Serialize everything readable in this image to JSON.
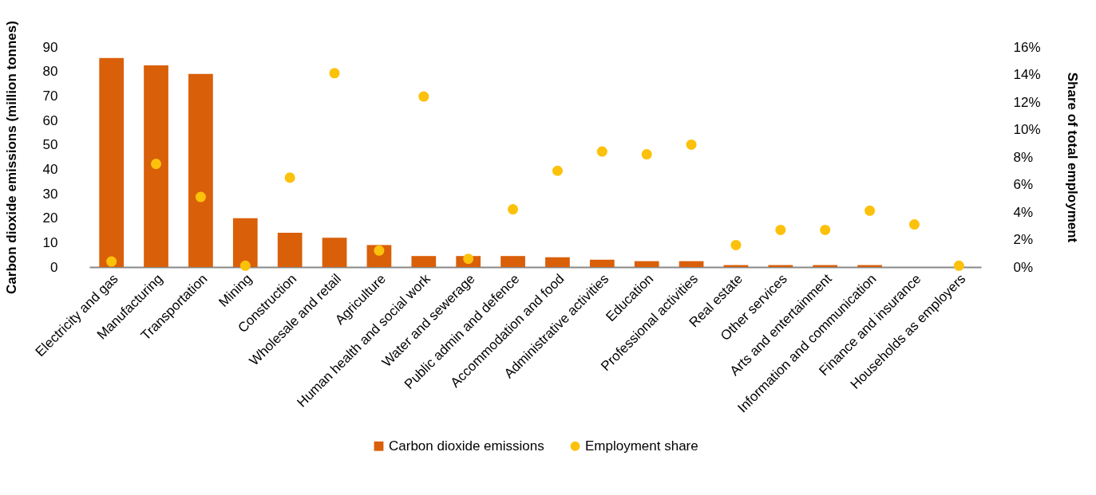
{
  "chart_data": {
    "type": "bar",
    "categories": [
      "Electricity and gas",
      "Manufacturing",
      "Transportation",
      "Mining",
      "Construction",
      "Wholesale and retail",
      "Agriculture",
      "Human health and social work",
      "Water and sewerage",
      "Public admin and defence",
      "Accommodation and food",
      "Administrative activities",
      "Education",
      "Professional activities",
      "Real estate",
      "Other services",
      "Arts and entertainment",
      "Information and communication",
      "Finance and insurance",
      "Households as employers"
    ],
    "series": [
      {
        "name": "Carbon dioxide emissions",
        "color": "#d95f09",
        "values": [
          85.5,
          82.5,
          79,
          20,
          14,
          12,
          9,
          4.5,
          4.5,
          4.5,
          4,
          3,
          2.4,
          2.4,
          0.8,
          0.8,
          0.8,
          0.8,
          0,
          0
        ]
      },
      {
        "name": "Employment share",
        "type": "scatter",
        "axis": "y2",
        "color": "#fcc10b",
        "values": [
          0.4,
          7.5,
          5.1,
          0.1,
          6.5,
          14.1,
          1.2,
          12.4,
          0.6,
          4.2,
          7,
          8.4,
          8.2,
          8.9,
          1.6,
          2.7,
          2.7,
          4.1,
          3.1,
          0.1
        ]
      }
    ],
    "ylabel": "Carbon dioxide emissions (million tonnes)",
    "y2label": "Share of total employment",
    "ylim": [
      0,
      90
    ],
    "yticks": [
      0,
      10,
      20,
      30,
      40,
      50,
      60,
      70,
      80,
      90
    ],
    "y2lim": [
      0,
      16
    ],
    "y2ticks": [
      {
        "value": 0,
        "label": "0%"
      },
      {
        "value": 2,
        "label": "2%"
      },
      {
        "value": 4,
        "label": "4%"
      },
      {
        "value": 6,
        "label": "6%"
      },
      {
        "value": 8,
        "label": "8%"
      },
      {
        "value": 10,
        "label": "10%"
      },
      {
        "value": 12,
        "label": "12%"
      },
      {
        "value": 14,
        "label": "14%"
      },
      {
        "value": 16,
        "label": "16%"
      }
    ],
    "marker": "circle",
    "grid": false,
    "legend": "bottom"
  }
}
